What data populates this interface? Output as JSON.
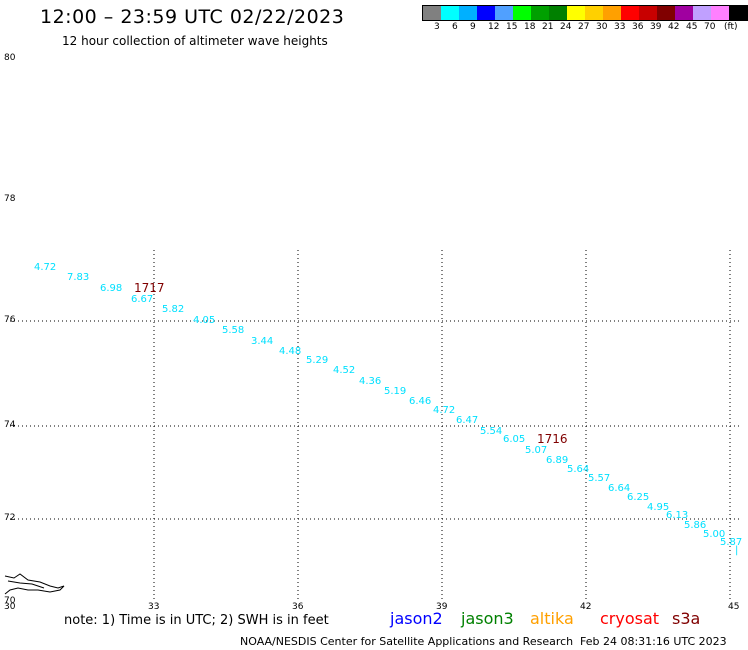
{
  "header": {
    "title": "12:00 – 23:59 UTC 02/22/2023",
    "subtitle": "12 hour collection of altimeter wave heights"
  },
  "legend": {
    "colors": [
      "#808080",
      "#00ffff",
      "#00b0ff",
      "#0000ff",
      "#50a0ff",
      "#00ff00",
      "#00a000",
      "#008000",
      "#ffff00",
      "#ffd000",
      "#ffa000",
      "#ff0000",
      "#c80000",
      "#800000",
      "#a000a0",
      "#c0a0ff",
      "#ff80ff",
      "#000000"
    ],
    "labels": [
      "3",
      "6",
      "9",
      "12",
      "15",
      "18",
      "21",
      "24",
      "27",
      "30",
      "33",
      "36",
      "39",
      "42",
      "45",
      "70",
      "(ft)"
    ]
  },
  "map": {
    "lat_labels": [
      "80",
      "78",
      "76",
      "74",
      "72",
      "70"
    ],
    "lon_labels": [
      "30",
      "33",
      "36",
      "39",
      "42",
      "45"
    ],
    "track_color": "#00e0ff",
    "time_color": "#800000",
    "wave_heights": [
      "4.72",
      "7.83",
      "6.98",
      "6.67",
      "5.82",
      "4.05",
      "5.58",
      "3.44",
      "4.48",
      "5.29",
      "4.52",
      "4.36",
      "5.19",
      "6.46",
      "4.72",
      "6.47",
      "5.54",
      "6.05",
      "5.07",
      "6.89",
      "5.64",
      "5.57",
      "6.64",
      "6.25",
      "4.95",
      "6.13",
      "5.86",
      "5.00",
      "5.87"
    ],
    "time_labels": [
      "1717",
      "1716"
    ]
  },
  "footer": {
    "note": "note: 1) Time is in UTC; 2) SWH is in feet",
    "satellites": [
      {
        "name": "jason2",
        "color": "#0000ff"
      },
      {
        "name": "jason3",
        "color": "#008000"
      },
      {
        "name": "altika",
        "color": "#ffa000"
      },
      {
        "name": "cryosat",
        "color": "#ff0000"
      },
      {
        "name": "s3a",
        "color": "#800000"
      }
    ],
    "credit": "NOAA/NESDIS Center for Satellite Applications and Research",
    "timestamp": "Feb 24 08:31:16 UTC 2023"
  }
}
